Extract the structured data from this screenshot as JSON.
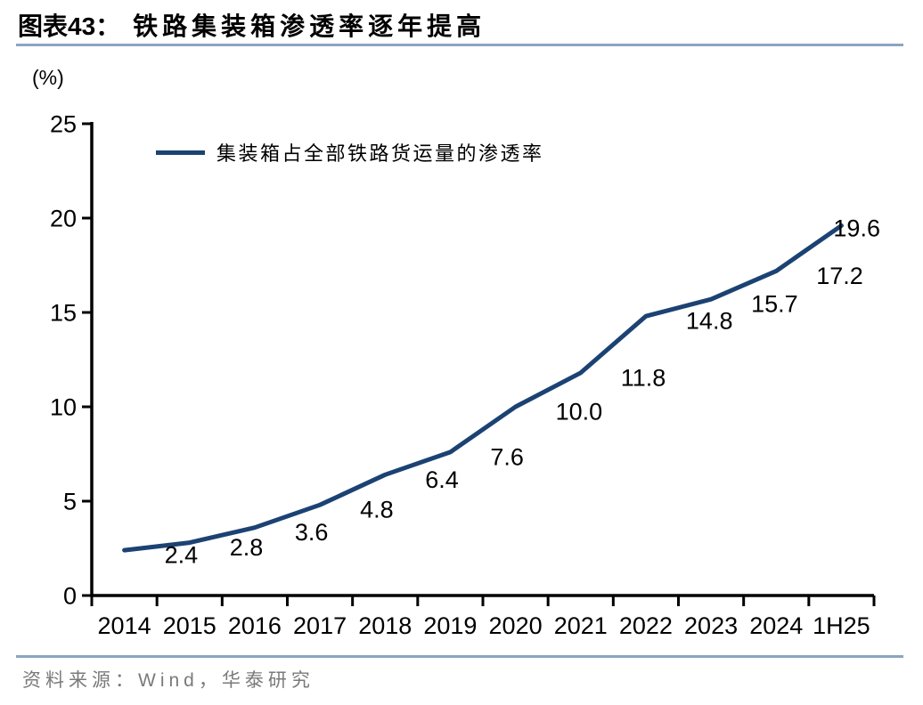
{
  "header": {
    "figure_label": "图表43：",
    "title": "铁路集装箱渗透率逐年提高"
  },
  "chart_data": {
    "type": "line",
    "title": "铁路集装箱渗透率逐年提高",
    "unit_label": "(%)",
    "legend": "集装箱占全部铁路货运量的渗透率",
    "legend_position": "top-left-inside",
    "categories": [
      "2014",
      "2015",
      "2016",
      "2017",
      "2018",
      "2019",
      "2020",
      "2021",
      "2022",
      "2023",
      "2024",
      "1H25"
    ],
    "series": [
      {
        "name": "集装箱占全部铁路货运量的渗透率",
        "values": [
          2.4,
          2.8,
          3.6,
          4.8,
          6.4,
          7.6,
          10.0,
          11.8,
          14.8,
          15.7,
          17.2,
          19.6
        ]
      }
    ],
    "xlabel": "",
    "ylabel": "(%)",
    "ylim": [
      0,
      25
    ],
    "ytick_step": 5,
    "grid": false,
    "data_labels": true,
    "line_color": "#1B4273",
    "axis_color": "#000000"
  },
  "footer": {
    "source": "资料来源：Wind，华泰研究"
  },
  "colors": {
    "accent_line": "#1B4273",
    "divider": "#8CA5C0",
    "source_text": "#7A7A7A"
  }
}
